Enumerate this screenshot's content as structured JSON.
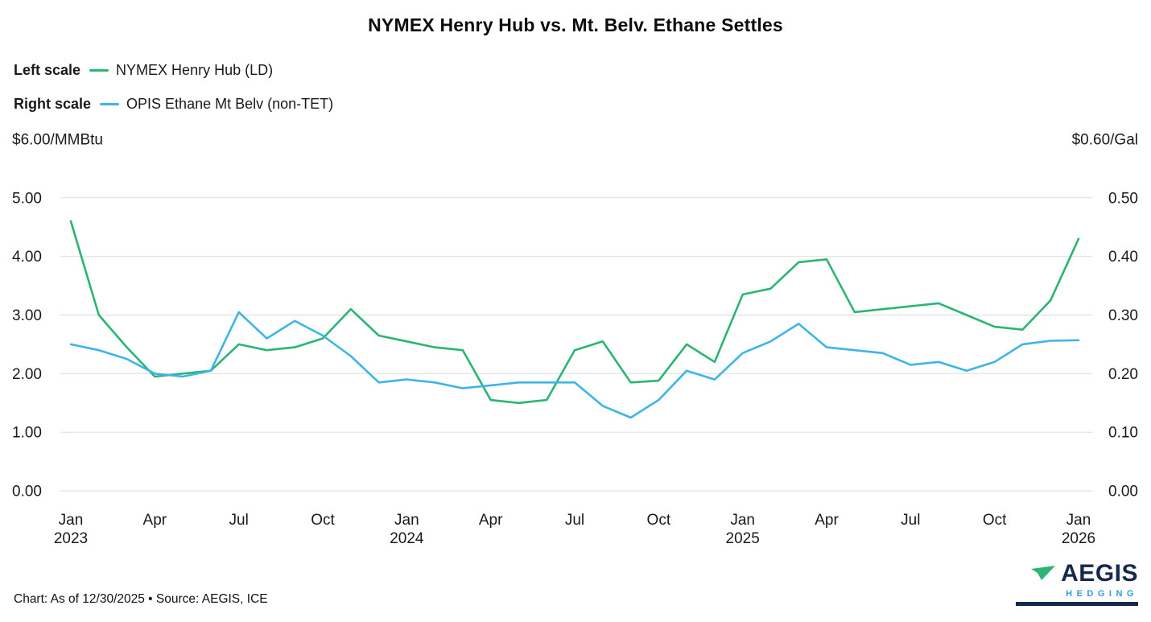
{
  "title": "NYMEX Henry Hub vs. Mt. Belv. Ethane Settles",
  "colors": {
    "henry_hub_green": "#2bb573",
    "ethane_blue": "#3eb5e6",
    "grid": "#e0e0e0",
    "text": "#1a1a1a",
    "logo_navy": "#16294d",
    "logo_teal": "#2e9fd8"
  },
  "legend": [
    {
      "scale_label": "Left scale",
      "series_label": "NYMEX Henry Hub (LD)",
      "color": "#2bb573"
    },
    {
      "scale_label": "Right scale",
      "series_label": "OPIS Ethane Mt Belv (non-TET)",
      "color": "#3eb5e6"
    }
  ],
  "footer": {
    "caption": "Chart: As of 12/30/2025 • Source: AEGIS, ICE"
  },
  "logo": {
    "name": "AEGIS",
    "sub": "HEDGING"
  },
  "chart_data": {
    "type": "line",
    "title": "NYMEX Henry Hub vs. Mt. Belv. Ethane Settles",
    "grid": "horizontal",
    "left_ylim": [
      0,
      6
    ],
    "right_ylim": [
      0,
      0.6
    ],
    "left_axis": {
      "unit_label": "$6.00/MMBtu",
      "unit": "$/MMBtu",
      "ticks": [
        {
          "label": "5.00",
          "value": 5
        },
        {
          "label": "4.00",
          "value": 4
        },
        {
          "label": "3.00",
          "value": 3
        },
        {
          "label": "2.00",
          "value": 2
        },
        {
          "label": "1.00",
          "value": 1
        },
        {
          "label": "0.00",
          "value": 0
        }
      ]
    },
    "right_axis": {
      "unit_label": "$0.60/Gal",
      "unit": "$/Gal",
      "ticks": [
        {
          "label": "0.50",
          "value": 0.5
        },
        {
          "label": "0.40",
          "value": 0.4
        },
        {
          "label": "0.30",
          "value": 0.3
        },
        {
          "label": "0.20",
          "value": 0.2
        },
        {
          "label": "0.10",
          "value": 0.1
        },
        {
          "label": "0.00",
          "value": 0
        }
      ]
    },
    "x": [
      "2023-01",
      "2023-02",
      "2023-03",
      "2023-04",
      "2023-05",
      "2023-06",
      "2023-07",
      "2023-08",
      "2023-09",
      "2023-10",
      "2023-11",
      "2023-12",
      "2024-01",
      "2024-02",
      "2024-03",
      "2024-04",
      "2024-05",
      "2024-06",
      "2024-07",
      "2024-08",
      "2024-09",
      "2024-10",
      "2024-11",
      "2024-12",
      "2025-01",
      "2025-02",
      "2025-03",
      "2025-04",
      "2025-05",
      "2025-06",
      "2025-07",
      "2025-08",
      "2025-09",
      "2025-10",
      "2025-11",
      "2025-12",
      "2026-01"
    ],
    "x_ticks": [
      {
        "index": 0,
        "month": "Jan",
        "year": "2023"
      },
      {
        "index": 3,
        "month": "Apr",
        "year": ""
      },
      {
        "index": 6,
        "month": "Jul",
        "year": ""
      },
      {
        "index": 9,
        "month": "Oct",
        "year": ""
      },
      {
        "index": 12,
        "month": "Jan",
        "year": "2024"
      },
      {
        "index": 15,
        "month": "Apr",
        "year": ""
      },
      {
        "index": 18,
        "month": "Jul",
        "year": ""
      },
      {
        "index": 21,
        "month": "Oct",
        "year": ""
      },
      {
        "index": 24,
        "month": "Jan",
        "year": "2025"
      },
      {
        "index": 27,
        "month": "Apr",
        "year": ""
      },
      {
        "index": 30,
        "month": "Jul",
        "year": ""
      },
      {
        "index": 33,
        "month": "Oct",
        "year": ""
      },
      {
        "index": 36,
        "month": "Jan",
        "year": "2026"
      }
    ],
    "series": [
      {
        "name": "NYMEX Henry Hub (LD)",
        "data_name": "henry-hub-line",
        "axis": "left",
        "unit": "$/MMBtu",
        "color": "#2bb573",
        "values": [
          4.6,
          3.0,
          2.45,
          1.95,
          2.0,
          2.05,
          2.5,
          2.4,
          2.45,
          2.6,
          3.1,
          2.65,
          2.55,
          2.45,
          2.4,
          1.55,
          1.5,
          1.55,
          2.4,
          2.55,
          1.85,
          1.88,
          2.5,
          2.2,
          3.35,
          3.45,
          3.9,
          3.95,
          3.05,
          3.1,
          3.15,
          3.2,
          3.0,
          2.8,
          2.75,
          3.25,
          4.3
        ]
      },
      {
        "name": "OPIS Ethane Mt Belv (non-TET)",
        "data_name": "ethane-line",
        "axis": "right",
        "unit": "$/Gal",
        "color": "#3eb5e6",
        "values": [
          0.25,
          0.24,
          0.225,
          0.2,
          0.195,
          0.205,
          0.305,
          0.26,
          0.29,
          0.265,
          0.23,
          0.185,
          0.19,
          0.185,
          0.175,
          0.18,
          0.185,
          0.185,
          0.185,
          0.145,
          0.125,
          0.155,
          0.205,
          0.19,
          0.235,
          0.255,
          0.285,
          0.245,
          0.24,
          0.235,
          0.215,
          0.22,
          0.205,
          0.22,
          0.25,
          0.256,
          0.257
        ]
      }
    ]
  }
}
